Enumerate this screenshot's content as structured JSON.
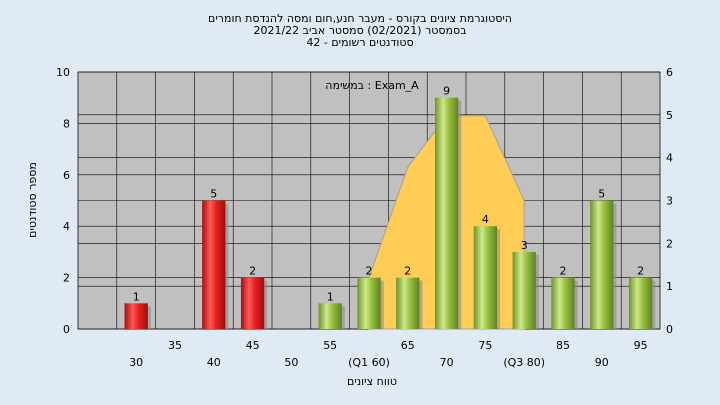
{
  "chart_data": {
    "type": "bar",
    "title_lines": [
      "היסטוגרמת ציונים בקורס - מעבר חנע,חום ומסה להנדסת חומרים",
      "בסמסטר  (02/2021)  סמסטר אביב 2021/22",
      "42 - סטודנטים רשומים"
    ],
    "annotation": "במשימה : Exam_A",
    "ylabel": "מספר סטודנטים",
    "xlabel": "טווח ציונים",
    "ylim": [
      0,
      10
    ],
    "y2lim": [
      0,
      6
    ],
    "yticks": [
      "0",
      "2",
      "4",
      "6",
      "8",
      "10"
    ],
    "y2ticks": [
      "0",
      "1",
      "2",
      "3",
      "4",
      "5",
      "6"
    ],
    "x_tick_labels": [
      {
        "grade": 30,
        "text": "30",
        "row": 2
      },
      {
        "grade": 35,
        "text": "35",
        "row": 1
      },
      {
        "grade": 40,
        "text": "40",
        "row": 2
      },
      {
        "grade": 45,
        "text": "45",
        "row": 1
      },
      {
        "grade": 50,
        "text": "50",
        "row": 2
      },
      {
        "grade": 55,
        "text": "55",
        "row": 1
      },
      {
        "grade": 60,
        "text": "(Q1 60)",
        "row": 2
      },
      {
        "grade": 65,
        "text": "65",
        "row": 1
      },
      {
        "grade": 70,
        "text": "70",
        "row": 2
      },
      {
        "grade": 75,
        "text": "75",
        "row": 1
      },
      {
        "grade": 80,
        "text": "(Q3 80)",
        "row": 2
      },
      {
        "grade": 85,
        "text": "85",
        "row": 1
      },
      {
        "grade": 90,
        "text": "90",
        "row": 2
      },
      {
        "grade": 95,
        "text": "95",
        "row": 1
      }
    ],
    "bars": [
      {
        "grade": 30,
        "value": 1,
        "label": "1",
        "color": "red"
      },
      {
        "grade": 40,
        "value": 5,
        "label": "5",
        "color": "red"
      },
      {
        "grade": 45,
        "value": 2,
        "label": "2",
        "color": "red"
      },
      {
        "grade": 55,
        "value": 1,
        "label": "1",
        "color": "green"
      },
      {
        "grade": 60,
        "value": 2,
        "label": "2",
        "color": "green"
      },
      {
        "grade": 65,
        "value": 2,
        "label": "2",
        "color": "green"
      },
      {
        "grade": 70,
        "value": 9,
        "label": "9",
        "color": "green"
      },
      {
        "grade": 75,
        "value": 4,
        "label": "4",
        "color": "green"
      },
      {
        "grade": 80,
        "value": 3,
        "label": "3",
        "color": "green"
      },
      {
        "grade": 85,
        "value": 2,
        "label": "2",
        "color": "green"
      },
      {
        "grade": 90,
        "value": 5,
        "label": "5",
        "color": "green"
      },
      {
        "grade": 95,
        "value": 2,
        "label": "2",
        "color": "green"
      }
    ],
    "interquartile_area": [
      {
        "grade": 60,
        "value": 2
      },
      {
        "grade": 65,
        "value": 6.3
      },
      {
        "grade": 70,
        "value": 8.3
      },
      {
        "grade": 75,
        "value": 8.3
      },
      {
        "grade": 80,
        "value": 5
      }
    ],
    "colors": {
      "background": "#dfeaf5",
      "plot_background": "#c0c0c0",
      "grid": "#000000",
      "area": "#ffcc55",
      "red_bar": "#e02020",
      "green_bar": "#98c040"
    }
  }
}
